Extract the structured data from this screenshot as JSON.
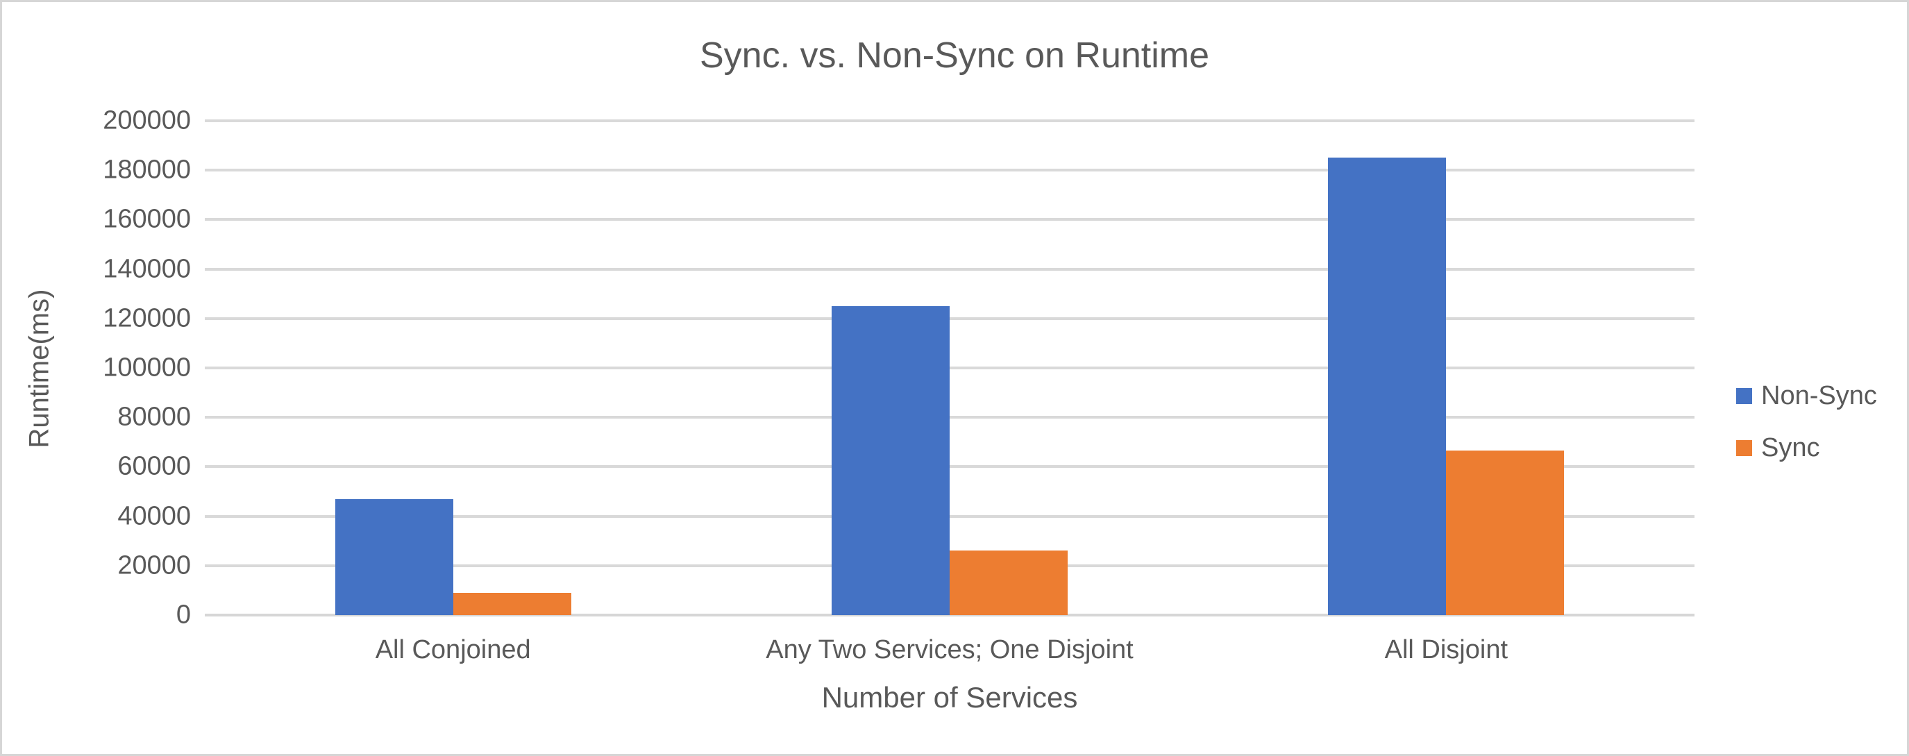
{
  "chart_data": {
    "type": "bar",
    "title": "Sync. vs. Non-Sync on Runtime",
    "xlabel": "Number of Services",
    "ylabel": "Runtime(ms)",
    "categories": [
      "All Conjoined",
      "Any Two Services; One Disjoint",
      "All Disjoint"
    ],
    "series": [
      {
        "name": "Non-Sync",
        "color": "#4472C4",
        "values": [
          47000,
          125000,
          185000
        ]
      },
      {
        "name": "Sync",
        "color": "#ED7D31",
        "values": [
          9000,
          26000,
          66500
        ]
      }
    ],
    "ylim": [
      0,
      200000
    ],
    "ytick_step": 20000,
    "grid": true,
    "legend_position": "right"
  },
  "colors": {
    "text": "#595959",
    "gridline": "#D9D9D9",
    "axis_line": "#D6D6D6",
    "background": "#FFFFFF",
    "frame_border": "#D6D6D6"
  }
}
